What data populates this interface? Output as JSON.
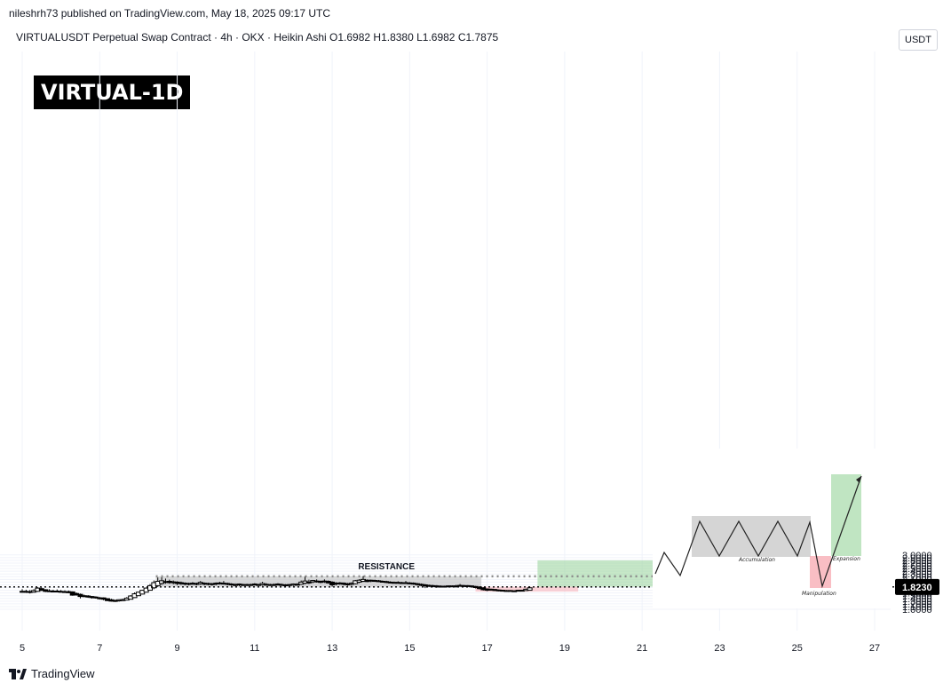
{
  "header": {
    "published": "nileshrh73 published on TradingView.com, May 18, 2025 09:17 UTC",
    "symbol_line": "VIRTUALUSDT Perpetual Swap Contract · 4h · OKX · Heikin Ashi  O1.6982  H1.8380  L1.6982  C1.7875"
  },
  "badge": "VIRTUAL-1D",
  "currency": "USDT",
  "footer_logo": "TradingView",
  "chart_data": {
    "type": "candlestick",
    "x_unit": "day of May 2025",
    "x_ticks": [
      5,
      7,
      9,
      11,
      13,
      15,
      17,
      19,
      21,
      23,
      25,
      27
    ],
    "xlim": [
      4.6,
      27.9
    ],
    "ylim": [
      0.95,
      3.05
    ],
    "y_ticks": [
      "1.0000",
      "1.1000",
      "1.2000",
      "1.3000",
      "1.4000",
      "1.5000",
      "1.6000",
      "1.7000",
      "1.8000",
      "1.9000",
      "2.0000",
      "2.1000",
      "2.2000",
      "2.3000",
      "2.4000",
      "2.5000",
      "2.6000",
      "2.7000",
      "2.8000",
      "2.9000",
      "3.0000"
    ],
    "current_price": 1.823,
    "current_price_label": "1.8230",
    "resistance_label": "RESISTANCE",
    "resistance_level": 2.215,
    "zones": [
      {
        "name": "accumulation-range",
        "x0": 8.45,
        "x1": 16.85,
        "y0": 1.83,
        "y1": 2.215,
        "color": "#b2b2b2"
      },
      {
        "name": "manipulation-zone",
        "x0": 16.7,
        "x1": 19.35,
        "y0": 1.65,
        "y1": 1.83,
        "color": "#f7a8b0"
      },
      {
        "name": "target-zone",
        "x0": 18.3,
        "x1": 21.8,
        "y0": 1.83,
        "y1": 2.8,
        "color": "#8dd08f"
      }
    ],
    "candles": [
      {
        "x": 5.0,
        "o": 1.66,
        "h": 1.74,
        "l": 1.61,
        "c": 1.63
      },
      {
        "x": 5.1,
        "o": 1.66,
        "h": 1.72,
        "l": 1.6,
        "c": 1.63
      },
      {
        "x": 5.2,
        "o": 1.65,
        "h": 1.71,
        "l": 1.58,
        "c": 1.62
      },
      {
        "x": 5.3,
        "o": 1.63,
        "h": 1.74,
        "l": 1.61,
        "c": 1.69
      },
      {
        "x": 5.4,
        "o": 1.66,
        "h": 1.81,
        "l": 1.64,
        "c": 1.78
      },
      {
        "x": 5.5,
        "o": 1.76,
        "h": 1.8,
        "l": 1.67,
        "c": 1.7
      },
      {
        "x": 5.6,
        "o": 1.72,
        "h": 1.74,
        "l": 1.63,
        "c": 1.66
      },
      {
        "x": 5.7,
        "o": 1.68,
        "h": 1.74,
        "l": 1.64,
        "c": 1.67
      },
      {
        "x": 5.8,
        "o": 1.67,
        "h": 1.72,
        "l": 1.63,
        "c": 1.65
      },
      {
        "x": 5.9,
        "o": 1.67,
        "h": 1.73,
        "l": 1.63,
        "c": 1.64
      },
      {
        "x": 6.0,
        "o": 1.66,
        "h": 1.71,
        "l": 1.62,
        "c": 1.64
      },
      {
        "x": 6.1,
        "o": 1.65,
        "h": 1.7,
        "l": 1.61,
        "c": 1.63
      },
      {
        "x": 6.2,
        "o": 1.65,
        "h": 1.69,
        "l": 1.59,
        "c": 1.61
      },
      {
        "x": 6.3,
        "o": 1.64,
        "h": 1.66,
        "l": 1.5,
        "c": 1.52
      },
      {
        "x": 6.4,
        "o": 1.58,
        "h": 1.62,
        "l": 1.5,
        "c": 1.53
      },
      {
        "x": 6.5,
        "o": 1.55,
        "h": 1.58,
        "l": 1.4,
        "c": 1.47
      },
      {
        "x": 6.6,
        "o": 1.5,
        "h": 1.54,
        "l": 1.44,
        "c": 1.47
      },
      {
        "x": 6.7,
        "o": 1.49,
        "h": 1.52,
        "l": 1.42,
        "c": 1.45
      },
      {
        "x": 6.8,
        "o": 1.47,
        "h": 1.49,
        "l": 1.39,
        "c": 1.43
      },
      {
        "x": 6.9,
        "o": 1.45,
        "h": 1.48,
        "l": 1.39,
        "c": 1.42
      },
      {
        "x": 7.0,
        "o": 1.42,
        "h": 1.46,
        "l": 1.36,
        "c": 1.4
      },
      {
        "x": 7.1,
        "o": 1.42,
        "h": 1.44,
        "l": 1.33,
        "c": 1.37
      },
      {
        "x": 7.2,
        "o": 1.39,
        "h": 1.41,
        "l": 1.3,
        "c": 1.32
      },
      {
        "x": 7.3,
        "o": 1.35,
        "h": 1.39,
        "l": 1.28,
        "c": 1.3
      },
      {
        "x": 7.4,
        "o": 1.33,
        "h": 1.35,
        "l": 1.27,
        "c": 1.29
      },
      {
        "x": 7.5,
        "o": 1.31,
        "h": 1.37,
        "l": 1.28,
        "c": 1.35
      },
      {
        "x": 7.6,
        "o": 1.32,
        "h": 1.39,
        "l": 1.3,
        "c": 1.36
      },
      {
        "x": 7.7,
        "o": 1.34,
        "h": 1.45,
        "l": 1.33,
        "c": 1.41
      },
      {
        "x": 7.8,
        "o": 1.37,
        "h": 1.52,
        "l": 1.36,
        "c": 1.49
      },
      {
        "x": 7.9,
        "o": 1.43,
        "h": 1.62,
        "l": 1.42,
        "c": 1.57
      },
      {
        "x": 8.0,
        "o": 1.5,
        "h": 1.65,
        "l": 1.49,
        "c": 1.63
      },
      {
        "x": 8.1,
        "o": 1.56,
        "h": 1.72,
        "l": 1.55,
        "c": 1.7
      },
      {
        "x": 8.2,
        "o": 1.63,
        "h": 1.8,
        "l": 1.62,
        "c": 1.78
      },
      {
        "x": 8.3,
        "o": 1.7,
        "h": 1.93,
        "l": 1.69,
        "c": 1.87
      },
      {
        "x": 8.4,
        "o": 1.79,
        "h": 2.06,
        "l": 1.74,
        "c": 1.98
      },
      {
        "x": 8.5,
        "o": 1.87,
        "h": 2.17,
        "l": 1.82,
        "c": 2.03
      },
      {
        "x": 8.6,
        "o": 1.95,
        "h": 2.18,
        "l": 1.9,
        "c": 2.05
      },
      {
        "x": 8.7,
        "o": 2.0,
        "h": 2.13,
        "l": 1.94,
        "c": 2.02
      },
      {
        "x": 8.8,
        "o": 2.03,
        "h": 2.09,
        "l": 1.94,
        "c": 1.98
      },
      {
        "x": 8.9,
        "o": 2.01,
        "h": 2.06,
        "l": 1.92,
        "c": 1.99
      },
      {
        "x": 9.0,
        "o": 2.0,
        "h": 2.03,
        "l": 1.89,
        "c": 1.95
      },
      {
        "x": 9.1,
        "o": 1.98,
        "h": 2.02,
        "l": 1.9,
        "c": 1.94
      },
      {
        "x": 9.2,
        "o": 1.96,
        "h": 1.99,
        "l": 1.88,
        "c": 1.93
      },
      {
        "x": 9.3,
        "o": 1.95,
        "h": 1.98,
        "l": 1.88,
        "c": 1.93
      },
      {
        "x": 9.4,
        "o": 1.94,
        "h": 2.0,
        "l": 1.9,
        "c": 1.96
      },
      {
        "x": 9.5,
        "o": 1.95,
        "h": 1.98,
        "l": 1.88,
        "c": 1.93
      },
      {
        "x": 9.6,
        "o": 1.94,
        "h": 2.04,
        "l": 1.9,
        "c": 1.99
      },
      {
        "x": 9.7,
        "o": 1.96,
        "h": 1.99,
        "l": 1.88,
        "c": 1.93
      },
      {
        "x": 9.8,
        "o": 1.95,
        "h": 1.98,
        "l": 1.88,
        "c": 1.93
      },
      {
        "x": 9.9,
        "o": 1.94,
        "h": 1.97,
        "l": 1.87,
        "c": 1.91
      },
      {
        "x": 10.0,
        "o": 1.93,
        "h": 1.99,
        "l": 1.88,
        "c": 1.96
      },
      {
        "x": 10.1,
        "o": 1.95,
        "h": 2.01,
        "l": 1.91,
        "c": 1.97
      },
      {
        "x": 10.2,
        "o": 1.96,
        "h": 2.04,
        "l": 1.91,
        "c": 1.94
      },
      {
        "x": 10.3,
        "o": 1.95,
        "h": 1.98,
        "l": 1.88,
        "c": 1.92
      },
      {
        "x": 10.4,
        "o": 1.93,
        "h": 1.96,
        "l": 1.86,
        "c": 1.9
      },
      {
        "x": 10.5,
        "o": 1.91,
        "h": 1.95,
        "l": 1.85,
        "c": 1.89
      },
      {
        "x": 10.6,
        "o": 1.9,
        "h": 1.95,
        "l": 1.85,
        "c": 1.93
      },
      {
        "x": 10.7,
        "o": 1.91,
        "h": 1.94,
        "l": 1.86,
        "c": 1.9
      },
      {
        "x": 10.8,
        "o": 1.91,
        "h": 1.94,
        "l": 1.86,
        "c": 1.89
      },
      {
        "x": 10.9,
        "o": 1.9,
        "h": 1.94,
        "l": 1.86,
        "c": 1.91
      },
      {
        "x": 11.0,
        "o": 1.9,
        "h": 1.96,
        "l": 1.87,
        "c": 1.93
      },
      {
        "x": 11.1,
        "o": 1.91,
        "h": 1.94,
        "l": 1.86,
        "c": 1.89
      },
      {
        "x": 11.2,
        "o": 1.9,
        "h": 2.01,
        "l": 1.87,
        "c": 1.95
      },
      {
        "x": 11.3,
        "o": 1.92,
        "h": 1.96,
        "l": 1.87,
        "c": 1.9
      },
      {
        "x": 11.4,
        "o": 1.91,
        "h": 1.94,
        "l": 1.86,
        "c": 1.89
      },
      {
        "x": 11.5,
        "o": 1.9,
        "h": 1.95,
        "l": 1.86,
        "c": 1.91
      },
      {
        "x": 11.6,
        "o": 1.9,
        "h": 1.96,
        "l": 1.87,
        "c": 1.93
      },
      {
        "x": 11.7,
        "o": 1.91,
        "h": 1.95,
        "l": 1.87,
        "c": 1.9
      },
      {
        "x": 11.8,
        "o": 1.9,
        "h": 1.93,
        "l": 1.84,
        "c": 1.88
      },
      {
        "x": 11.9,
        "o": 1.89,
        "h": 1.93,
        "l": 1.85,
        "c": 1.91
      },
      {
        "x": 12.0,
        "o": 1.89,
        "h": 1.95,
        "l": 1.86,
        "c": 1.93
      },
      {
        "x": 12.1,
        "o": 1.91,
        "h": 1.96,
        "l": 1.88,
        "c": 1.92
      },
      {
        "x": 12.2,
        "o": 1.92,
        "h": 2.06,
        "l": 1.9,
        "c": 2.0
      },
      {
        "x": 12.3,
        "o": 1.96,
        "h": 2.22,
        "l": 1.92,
        "c": 2.04
      },
      {
        "x": 12.4,
        "o": 2.0,
        "h": 2.09,
        "l": 1.93,
        "c": 1.97
      },
      {
        "x": 12.5,
        "o": 2.01,
        "h": 2.08,
        "l": 1.96,
        "c": 2.06
      },
      {
        "x": 12.6,
        "o": 2.04,
        "h": 2.1,
        "l": 1.98,
        "c": 2.01
      },
      {
        "x": 12.7,
        "o": 2.03,
        "h": 2.06,
        "l": 1.96,
        "c": 1.99
      },
      {
        "x": 12.8,
        "o": 2.02,
        "h": 2.1,
        "l": 1.97,
        "c": 2.04
      },
      {
        "x": 12.9,
        "o": 2.03,
        "h": 2.06,
        "l": 1.94,
        "c": 1.97
      },
      {
        "x": 13.0,
        "o": 2.0,
        "h": 2.03,
        "l": 1.83,
        "c": 1.9
      },
      {
        "x": 13.1,
        "o": 1.95,
        "h": 2.0,
        "l": 1.88,
        "c": 1.96
      },
      {
        "x": 13.2,
        "o": 1.95,
        "h": 2.0,
        "l": 1.9,
        "c": 1.97
      },
      {
        "x": 13.3,
        "o": 1.96,
        "h": 1.99,
        "l": 1.88,
        "c": 1.92
      },
      {
        "x": 13.4,
        "o": 1.94,
        "h": 1.97,
        "l": 1.86,
        "c": 1.9
      },
      {
        "x": 13.5,
        "o": 1.92,
        "h": 1.99,
        "l": 1.87,
        "c": 1.96
      },
      {
        "x": 13.6,
        "o": 1.94,
        "h": 2.08,
        "l": 1.92,
        "c": 2.05
      },
      {
        "x": 13.7,
        "o": 2.0,
        "h": 2.11,
        "l": 1.96,
        "c": 2.07
      },
      {
        "x": 13.8,
        "o": 2.03,
        "h": 2.22,
        "l": 2.0,
        "c": 2.1
      },
      {
        "x": 13.9,
        "o": 2.07,
        "h": 2.1,
        "l": 2.0,
        "c": 2.02
      },
      {
        "x": 14.0,
        "o": 2.05,
        "h": 2.09,
        "l": 2.0,
        "c": 2.07
      },
      {
        "x": 14.1,
        "o": 2.06,
        "h": 2.09,
        "l": 2.01,
        "c": 2.04
      },
      {
        "x": 14.2,
        "o": 2.05,
        "h": 2.08,
        "l": 2.0,
        "c": 2.02
      },
      {
        "x": 14.3,
        "o": 2.03,
        "h": 2.06,
        "l": 1.98,
        "c": 2.0
      },
      {
        "x": 14.4,
        "o": 2.02,
        "h": 2.05,
        "l": 1.96,
        "c": 1.99
      },
      {
        "x": 14.5,
        "o": 2.0,
        "h": 2.03,
        "l": 1.95,
        "c": 1.98
      },
      {
        "x": 14.6,
        "o": 1.99,
        "h": 2.02,
        "l": 1.95,
        "c": 1.97
      },
      {
        "x": 14.7,
        "o": 1.98,
        "h": 2.03,
        "l": 1.94,
        "c": 1.99
      },
      {
        "x": 14.8,
        "o": 1.98,
        "h": 2.01,
        "l": 1.94,
        "c": 1.96
      },
      {
        "x": 14.9,
        "o": 1.97,
        "h": 2.04,
        "l": 1.93,
        "c": 1.98
      },
      {
        "x": 15.0,
        "o": 1.97,
        "h": 2.0,
        "l": 1.92,
        "c": 1.95
      },
      {
        "x": 15.1,
        "o": 1.96,
        "h": 1.99,
        "l": 1.9,
        "c": 1.93
      },
      {
        "x": 15.2,
        "o": 1.94,
        "h": 1.97,
        "l": 1.87,
        "c": 1.91
      },
      {
        "x": 15.3,
        "o": 1.92,
        "h": 1.95,
        "l": 1.85,
        "c": 1.88
      },
      {
        "x": 15.4,
        "o": 1.9,
        "h": 1.93,
        "l": 1.78,
        "c": 1.86
      },
      {
        "x": 15.5,
        "o": 1.88,
        "h": 1.91,
        "l": 1.82,
        "c": 1.85
      },
      {
        "x": 15.6,
        "o": 1.87,
        "h": 1.9,
        "l": 1.81,
        "c": 1.86
      },
      {
        "x": 15.7,
        "o": 1.86,
        "h": 1.89,
        "l": 1.79,
        "c": 1.84
      },
      {
        "x": 15.8,
        "o": 1.85,
        "h": 1.88,
        "l": 1.8,
        "c": 1.83
      },
      {
        "x": 15.9,
        "o": 1.84,
        "h": 1.87,
        "l": 1.8,
        "c": 1.85
      },
      {
        "x": 16.0,
        "o": 1.84,
        "h": 1.88,
        "l": 1.82,
        "c": 1.86
      },
      {
        "x": 16.1,
        "o": 1.85,
        "h": 1.88,
        "l": 1.82,
        "c": 1.86
      },
      {
        "x": 16.2,
        "o": 1.85,
        "h": 1.9,
        "l": 1.8,
        "c": 1.86
      },
      {
        "x": 16.3,
        "o": 1.85,
        "h": 1.93,
        "l": 1.83,
        "c": 1.88
      },
      {
        "x": 16.4,
        "o": 1.87,
        "h": 1.9,
        "l": 1.84,
        "c": 1.87
      },
      {
        "x": 16.5,
        "o": 1.87,
        "h": 1.89,
        "l": 1.83,
        "c": 1.85
      },
      {
        "x": 16.6,
        "o": 1.86,
        "h": 1.88,
        "l": 1.81,
        "c": 1.83
      },
      {
        "x": 16.7,
        "o": 1.84,
        "h": 1.86,
        "l": 1.77,
        "c": 1.8
      },
      {
        "x": 16.8,
        "o": 1.82,
        "h": 1.84,
        "l": 1.73,
        "c": 1.76
      },
      {
        "x": 16.9,
        "o": 1.79,
        "h": 1.81,
        "l": 1.69,
        "c": 1.72
      },
      {
        "x": 17.0,
        "o": 1.75,
        "h": 1.77,
        "l": 1.67,
        "c": 1.7
      },
      {
        "x": 17.1,
        "o": 1.72,
        "h": 1.76,
        "l": 1.68,
        "c": 1.74
      },
      {
        "x": 17.2,
        "o": 1.73,
        "h": 1.75,
        "l": 1.67,
        "c": 1.69
      },
      {
        "x": 17.3,
        "o": 1.71,
        "h": 1.73,
        "l": 1.66,
        "c": 1.68
      },
      {
        "x": 17.4,
        "o": 1.7,
        "h": 1.72,
        "l": 1.66,
        "c": 1.69
      },
      {
        "x": 17.5,
        "o": 1.69,
        "h": 1.71,
        "l": 1.65,
        "c": 1.67
      },
      {
        "x": 17.6,
        "o": 1.68,
        "h": 1.71,
        "l": 1.66,
        "c": 1.69
      },
      {
        "x": 17.7,
        "o": 1.68,
        "h": 1.7,
        "l": 1.66,
        "c": 1.68
      },
      {
        "x": 17.8,
        "o": 1.68,
        "h": 1.71,
        "l": 1.67,
        "c": 1.7
      },
      {
        "x": 17.9,
        "o": 1.69,
        "h": 1.72,
        "l": 1.67,
        "c": 1.7
      },
      {
        "x": 18.0,
        "o": 1.69,
        "h": 1.76,
        "l": 1.68,
        "c": 1.74
      },
      {
        "x": 18.1,
        "o": 1.7,
        "h": 1.84,
        "l": 1.7,
        "c": 1.79
      }
    ],
    "inset": {
      "labels": {
        "accumulation": "Accumulation",
        "manipulation": "Manipulation",
        "expansion": "Expansion"
      }
    }
  }
}
